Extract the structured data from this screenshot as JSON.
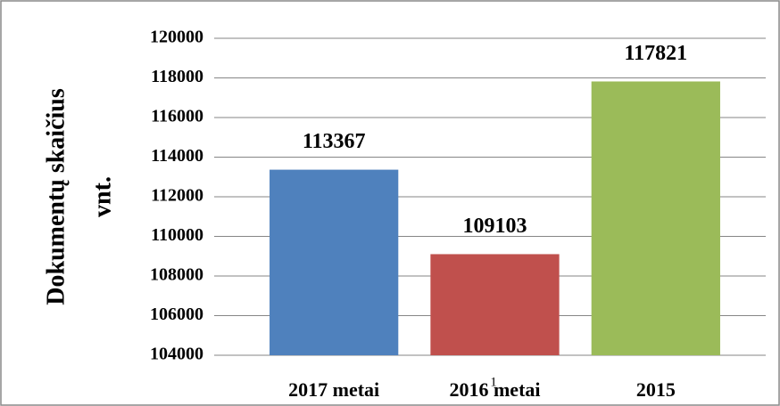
{
  "chart_data": {
    "type": "bar",
    "y_label": [
      "Dokumentų skaičius",
      "vnt."
    ],
    "categories": [
      "2017 metai",
      "2016 metai",
      "2015"
    ],
    "values": [
      113367,
      109103,
      117821
    ],
    "colors": [
      "#4f81bd",
      "#c0504d",
      "#9bbb59"
    ],
    "ylim": [
      104000,
      120000
    ],
    "yticks": [
      104000,
      106000,
      108000,
      110000,
      112000,
      114000,
      116000,
      118000,
      120000
    ],
    "grid": true,
    "annotation": "1"
  }
}
